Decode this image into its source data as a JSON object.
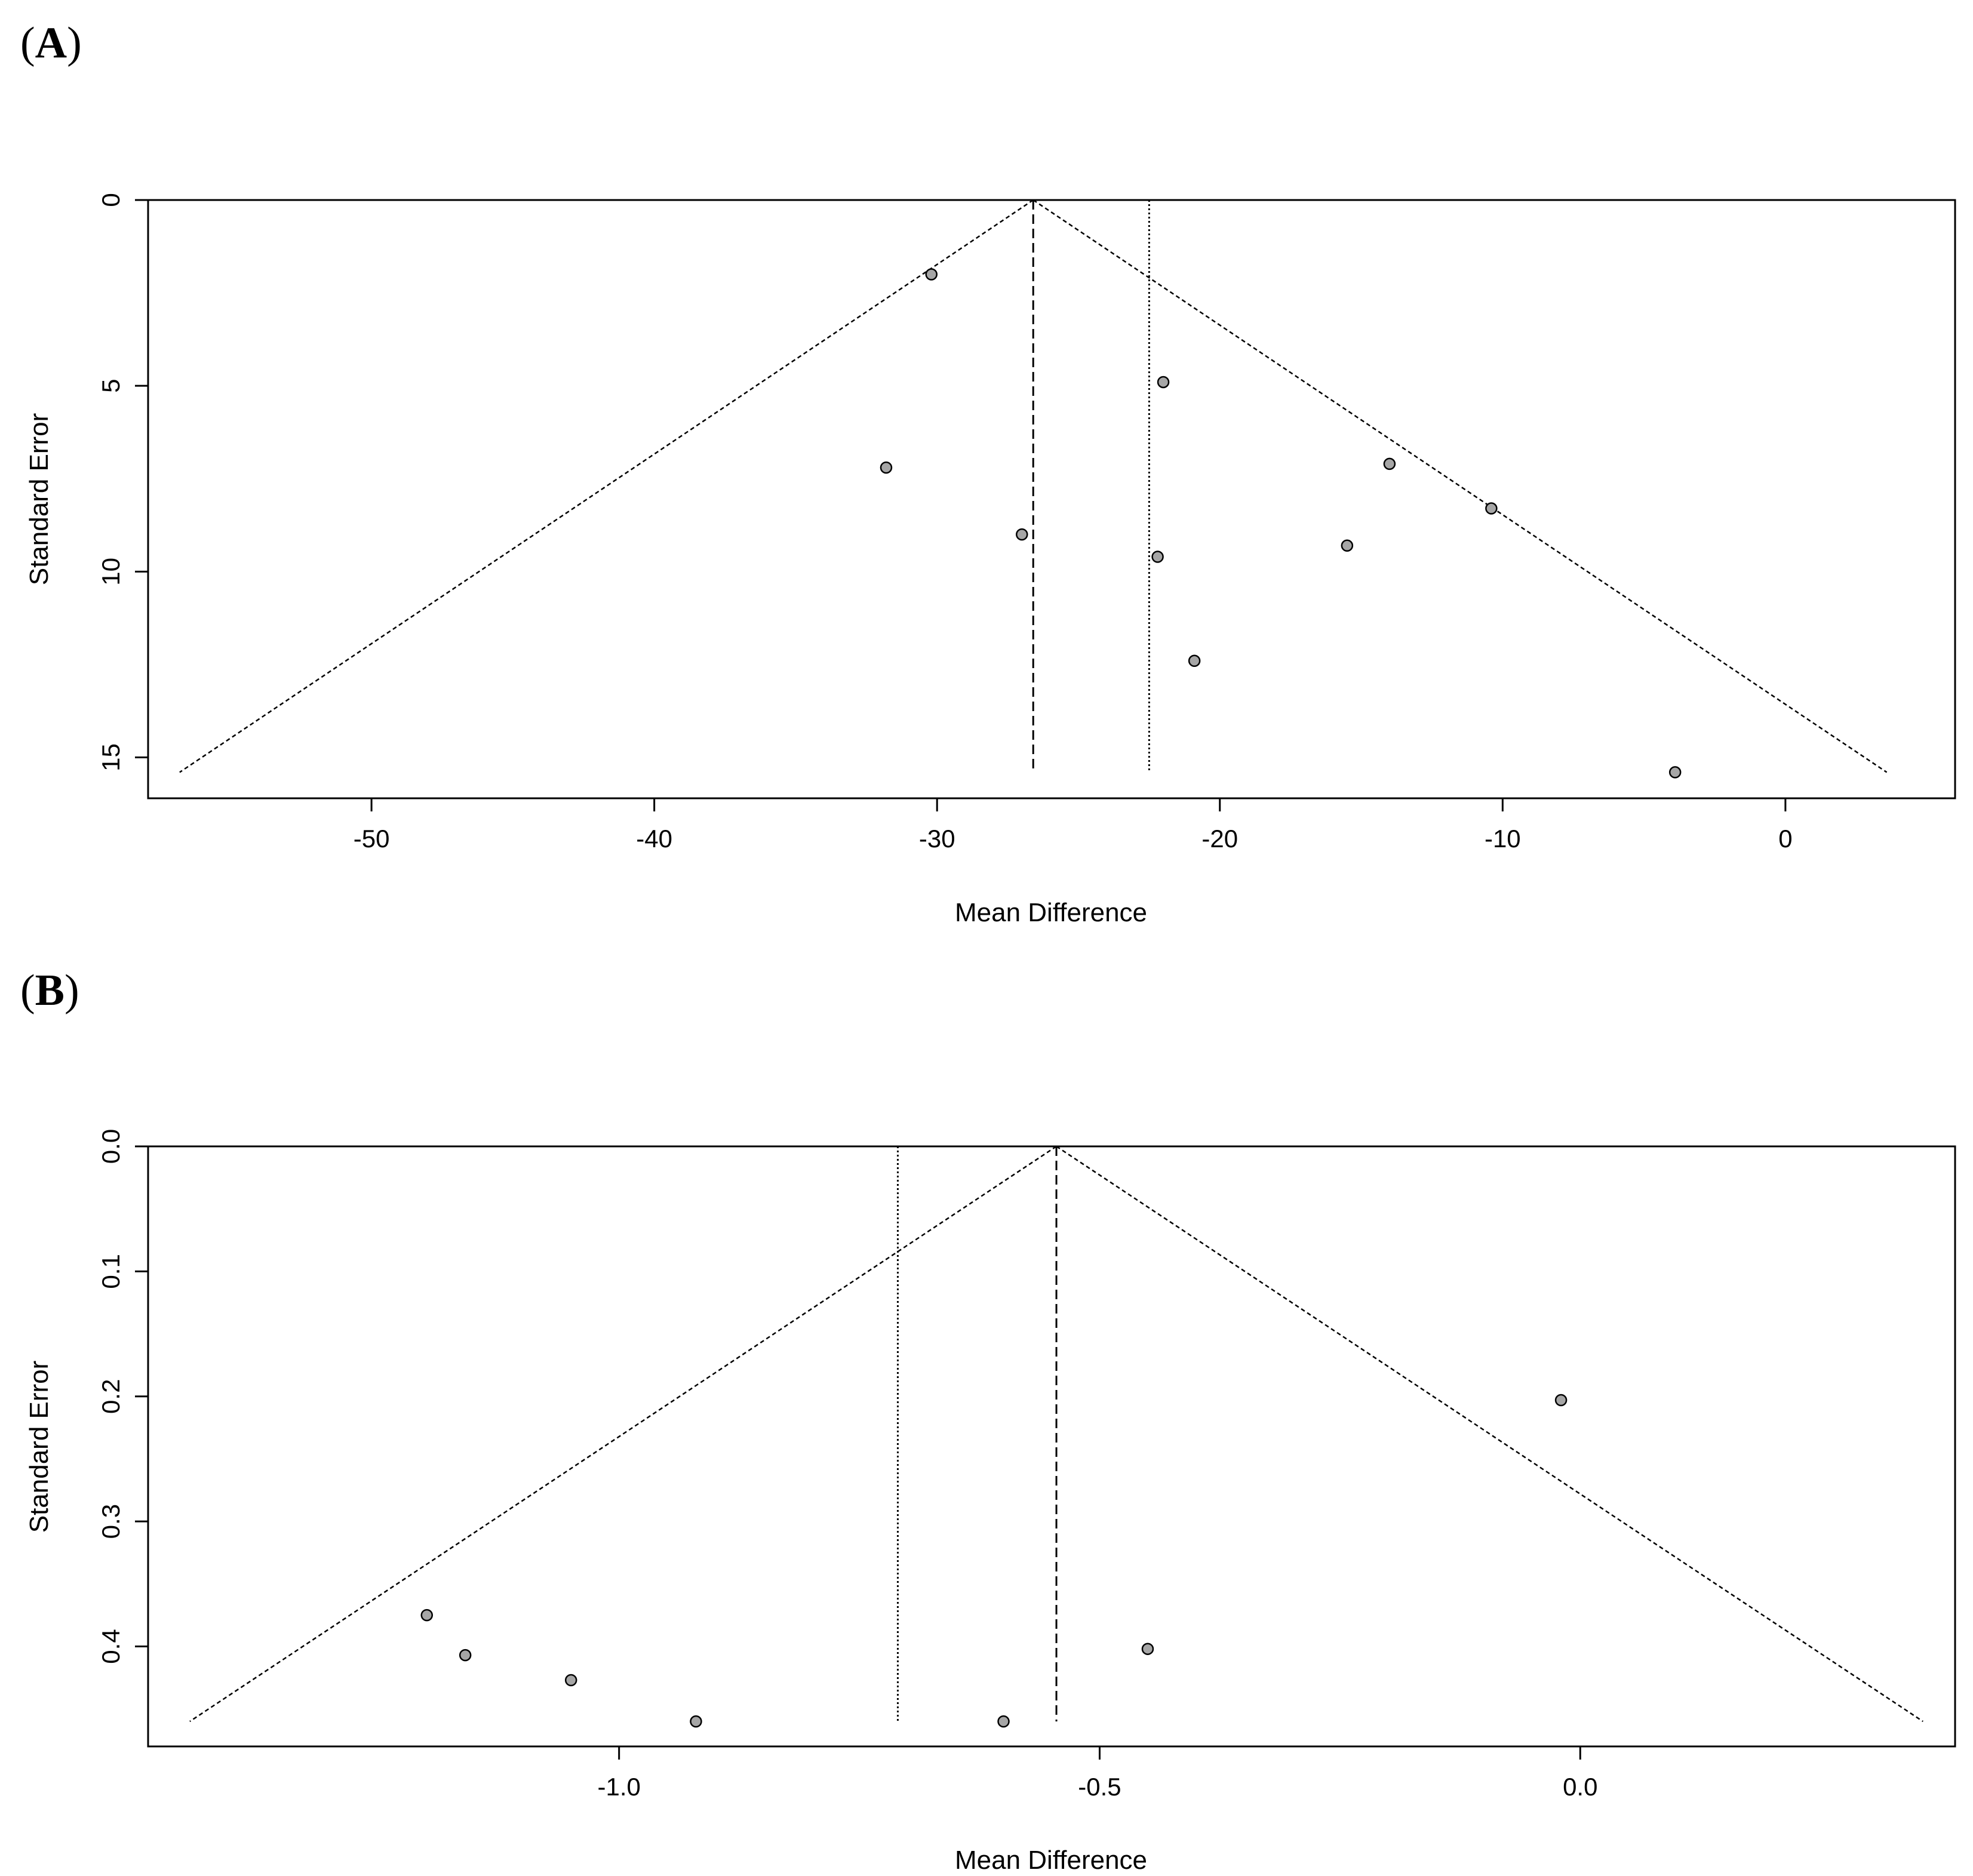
{
  "chart_data": [
    {
      "type": "scatter",
      "subtype": "funnel",
      "panel_label": "A",
      "xlabel": "Mean Difference",
      "ylabel": "Standard Error",
      "xlim": [
        -57.9,
        6.0
      ],
      "ylim": [
        0,
        16.1
      ],
      "y_reversed": true,
      "x_ticks": [
        -50,
        -40,
        -30,
        -20,
        -10,
        0
      ],
      "y_ticks": [
        0,
        5,
        10,
        15
      ],
      "x_tick_labels": [
        "-50",
        "-40",
        "-30",
        "-20",
        "-10",
        "0"
      ],
      "y_tick_labels": [
        "0",
        "5",
        "10",
        "15"
      ],
      "pooled_estimate": -26.6,
      "reference_line": -22.5,
      "funnel_max_se": 15.4,
      "points": [
        {
          "x": -30.2,
          "y": 2.0
        },
        {
          "x": -31.8,
          "y": 7.2
        },
        {
          "x": -27.0,
          "y": 9.0
        },
        {
          "x": -22.0,
          "y": 4.9
        },
        {
          "x": -22.2,
          "y": 9.6
        },
        {
          "x": -20.9,
          "y": 12.4
        },
        {
          "x": -15.5,
          "y": 9.3
        },
        {
          "x": -14.0,
          "y": 7.1
        },
        {
          "x": -10.4,
          "y": 8.3
        },
        {
          "x": -3.9,
          "y": 15.4
        }
      ],
      "grid": false,
      "legend": "none"
    },
    {
      "type": "scatter",
      "subtype": "funnel",
      "panel_label": "B",
      "xlabel": "Mean Difference",
      "ylabel": "Standard Error",
      "xlim": [
        -1.49,
        0.39
      ],
      "ylim": [
        0,
        0.48
      ],
      "y_reversed": true,
      "x_ticks": [
        -1.0,
        -0.5,
        0.0
      ],
      "y_ticks": [
        0.0,
        0.1,
        0.2,
        0.3,
        0.4
      ],
      "x_tick_labels": [
        "-1.0",
        "-0.5",
        "0.0"
      ],
      "y_tick_labels": [
        "0.0",
        "0.1",
        "0.2",
        "0.3",
        "0.4"
      ],
      "pooled_estimate": -0.545,
      "reference_line": -0.71,
      "funnel_max_se": 0.46,
      "points": [
        {
          "x": -1.2,
          "y": 0.375
        },
        {
          "x": -1.16,
          "y": 0.407
        },
        {
          "x": -1.05,
          "y": 0.427
        },
        {
          "x": -0.92,
          "y": 0.46
        },
        {
          "x": -0.6,
          "y": 0.46
        },
        {
          "x": -0.45,
          "y": 0.402
        },
        {
          "x": -0.02,
          "y": 0.203
        }
      ],
      "grid": false,
      "legend": "none"
    }
  ],
  "colors": {
    "point_fill": "#a6a6a6",
    "point_stroke": "#000000",
    "line": "#000000",
    "background": "#ffffff"
  }
}
